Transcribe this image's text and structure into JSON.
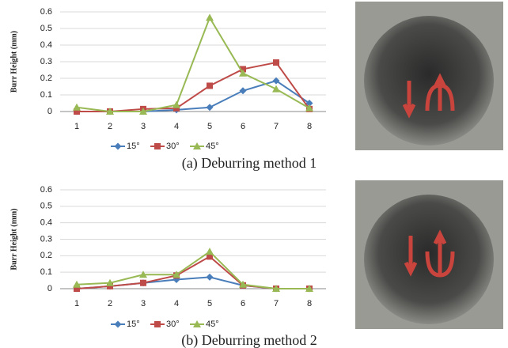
{
  "chart_data": [
    {
      "type": "line",
      "ylabel": "Burr Height (mm)",
      "caption": "(a) Deburring method 1",
      "categories": [
        1,
        2,
        3,
        4,
        5,
        6,
        7,
        8
      ],
      "ylim": [
        0,
        0.6
      ],
      "yticks": [
        0,
        0.1,
        0.2,
        0.3,
        0.4,
        0.5,
        0.6
      ],
      "grid": true,
      "series": [
        {
          "name": "15°",
          "color": "#4a7ebb",
          "marker": "diamond",
          "values": [
            0,
            0,
            0,
            0.01,
            0.025,
            0.125,
            0.185,
            0.05
          ]
        },
        {
          "name": "30°",
          "color": "#be4b48",
          "marker": "square",
          "values": [
            0,
            0,
            0.015,
            0.02,
            0.155,
            0.255,
            0.295,
            0.015
          ]
        },
        {
          "name": "45°",
          "color": "#98b954",
          "marker": "triangle",
          "values": [
            0.025,
            0,
            0,
            0.04,
            0.565,
            0.23,
            0.135,
            0.02
          ]
        }
      ]
    },
    {
      "type": "line",
      "ylabel": "Burr Height (mm)",
      "caption": "(b) Deburring method 2",
      "categories": [
        1,
        2,
        3,
        4,
        5,
        6,
        7,
        8
      ],
      "ylim": [
        0,
        0.6
      ],
      "yticks": [
        0,
        0.1,
        0.2,
        0.3,
        0.4,
        0.5,
        0.6
      ],
      "grid": true,
      "series": [
        {
          "name": "15°",
          "color": "#4a7ebb",
          "marker": "diamond",
          "values": [
            0,
            0.015,
            0.035,
            0.055,
            0.07,
            0.02,
            0,
            0
          ]
        },
        {
          "name": "30°",
          "color": "#be4b48",
          "marker": "square",
          "values": [
            0,
            0.015,
            0.035,
            0.08,
            0.195,
            0.02,
            0,
            0
          ]
        },
        {
          "name": "45°",
          "color": "#98b954",
          "marker": "triangle",
          "values": [
            0.025,
            0.035,
            0.085,
            0.085,
            0.225,
            0.025,
            0,
            0
          ]
        }
      ]
    }
  ]
}
